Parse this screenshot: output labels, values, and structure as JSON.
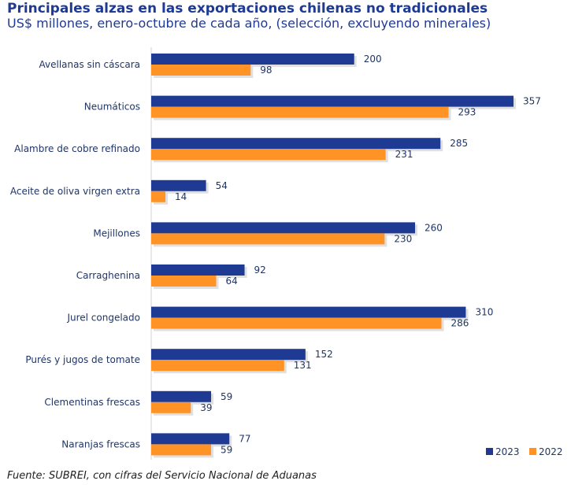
{
  "title": "Principales alzas en las exportaciones chilenas no tradicionales",
  "subtitle": "US$ millones, enero-octubre de cada año, (selección, excluyendo minerales)",
  "source": "Fuente: SUBREI, con cifras del Servicio Nacional de Aduanas",
  "chart_data": {
    "type": "bar",
    "orientation": "horizontal",
    "categories": [
      "Avellanas sin cáscara",
      "Neumáticos",
      "Alambre de cobre refinado",
      "Aceite de oliva virgen extra",
      "Mejillones",
      "Carraghenina",
      "Jurel congelado",
      "Purés y jugos de tomate",
      "Clementinas frescas",
      "Naranjas frescas"
    ],
    "series": [
      {
        "name": "2023",
        "color": "#1f3a93",
        "values": [
          200,
          357,
          285,
          54,
          260,
          92,
          310,
          152,
          59,
          77
        ]
      },
      {
        "name": "2022",
        "color": "#ff9326",
        "values": [
          98,
          293,
          231,
          14,
          230,
          64,
          286,
          131,
          39,
          59
        ]
      }
    ],
    "xlim": [
      0,
      357
    ],
    "legend_position": "bottom-right",
    "grid": false
  }
}
